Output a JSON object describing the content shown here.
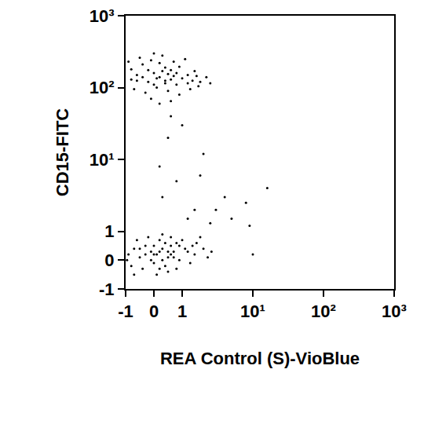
{
  "chart_data": {
    "type": "scatter",
    "x_label": "REA Control (S)-VioBlue",
    "y_label": "CD15-FITC",
    "log": true,
    "grid": false,
    "xlim": [
      -1,
      1000
    ],
    "ylim": [
      -1,
      1000
    ],
    "xticks": [
      -1,
      0,
      1,
      {
        "value": 10,
        "label": "10¹"
      },
      {
        "value": 100,
        "label": "10²"
      },
      {
        "value": 1000,
        "label": "10³"
      }
    ],
    "yticks": [
      -1,
      0,
      1,
      {
        "value": 10,
        "label": "10¹"
      },
      {
        "value": 100,
        "label": "10²"
      },
      {
        "value": 1000,
        "label": "10³"
      }
    ],
    "series": [
      {
        "color": "#000000",
        "marker": "dot",
        "x": [
          -0.8,
          -0.6,
          -0.4,
          -0.2,
          0,
          0.2,
          0.4,
          0.6,
          0.8,
          1.2,
          1.5,
          1.8,
          2.2,
          -0.7,
          -0.3,
          0.1,
          0.5,
          0.9,
          1.3,
          1.7,
          -0.5,
          -0.1,
          0.3,
          0.7,
          1.1,
          -0.9,
          0,
          0.4,
          0.6,
          0.2,
          -0.2,
          0.8,
          1,
          1.4,
          -0.6,
          0.1,
          0.5,
          0.3,
          -0.4,
          0.7,
          0.9,
          1.6,
          2.5,
          -0.1,
          0.2,
          0.6,
          -0.8,
          0.4,
          0,
          1.2,
          -0.9,
          -0.7,
          -0.5,
          -0.3,
          -0.1,
          0.1,
          0.3,
          0.5,
          0.7,
          0.9,
          1.2,
          1.5,
          2,
          2.6,
          -0.8,
          -0.4,
          0,
          0.4,
          0.8,
          1.3,
          -0.6,
          -0.2,
          0.2,
          0.6,
          1,
          1.8,
          -0.95,
          0,
          0.3,
          0.6,
          0.2,
          0.4,
          -0.1,
          0.7,
          0.5,
          0.1,
          -0.3,
          0.9,
          1.1,
          1.6,
          2.3,
          -0.7,
          0.3,
          0.8,
          0,
          0.5,
          -0.5,
          1.4,
          0.2,
          0.6,
          0.3,
          0.8,
          1.5,
          2,
          0.5,
          1,
          3,
          5,
          0.2,
          1.2,
          4,
          9,
          16,
          10,
          8,
          0.6,
          2.5,
          1.8
        ],
        "values": [
          180,
          150,
          210,
          120,
          160,
          140,
          190,
          130,
          110,
          150,
          170,
          120,
          140,
          95,
          85,
          100,
          90,
          80,
          95,
          105,
          260,
          240,
          280,
          230,
          250,
          230,
          300,
          115,
          175,
          220,
          175,
          160,
          135,
          125,
          125,
          135,
          155,
          170,
          140,
          145,
          195,
          145,
          115,
          70,
          60,
          65,
          130,
          125,
          110,
          115,
          0.2,
          0.4,
          0.1,
          0.5,
          0.3,
          0.2,
          0.4,
          0.3,
          0.1,
          0.5,
          0.3,
          0.2,
          0.4,
          0.3,
          -0.2,
          -0.3,
          -0.1,
          -0.2,
          -0.3,
          -0.1,
          0.7,
          0.8,
          0.7,
          0.8,
          0.7,
          0.8,
          0,
          0.5,
          0,
          0.5,
          0.3,
          0.6,
          0,
          0.3,
          -0.4,
          -0.5,
          0.2,
          0,
          0.4,
          0.6,
          0.1,
          -0.5,
          0.9,
          0.6,
          0.2,
          0.1,
          0.4,
          0.5,
          -0.3,
          0.2,
          3,
          5,
          2,
          12,
          20,
          30,
          2,
          1.5,
          8,
          1.5,
          3,
          1.2,
          4,
          0.2,
          2.5,
          40,
          1.3,
          6
        ]
      }
    ]
  }
}
